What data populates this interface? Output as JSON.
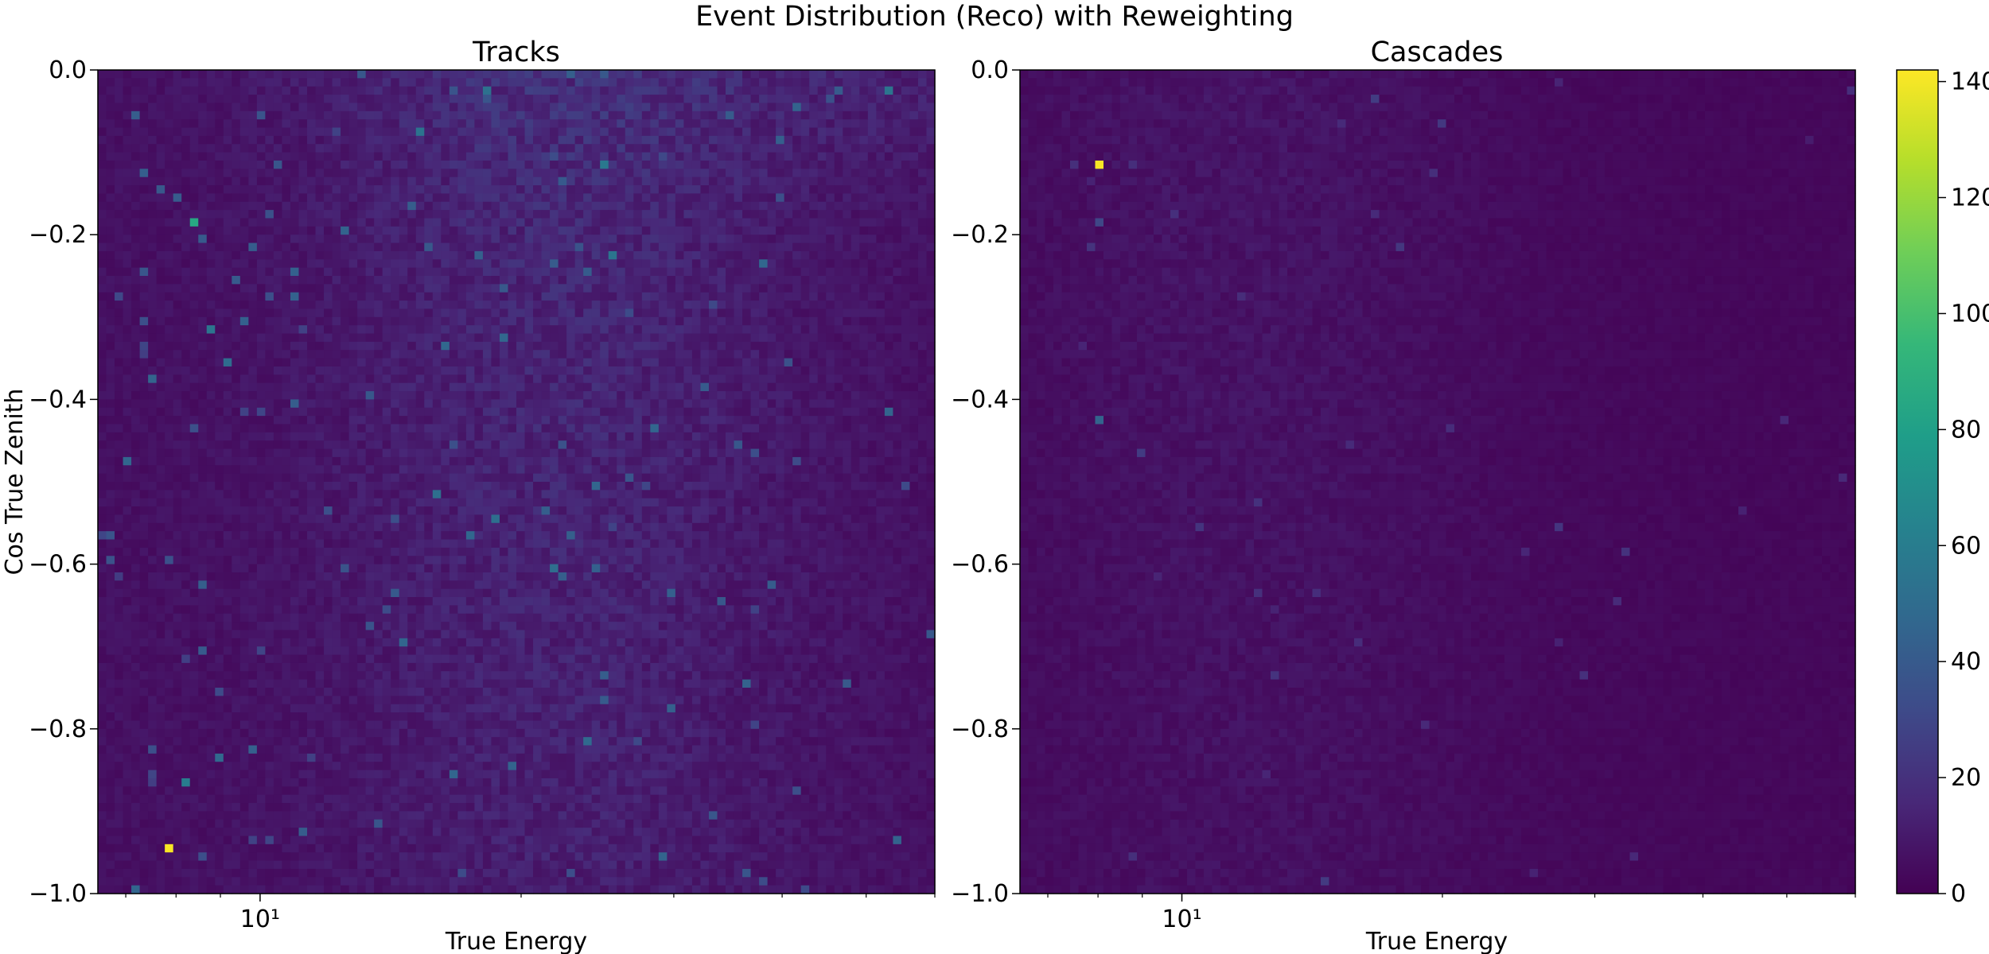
{
  "figure": {
    "title": "Event Distribution (Reco) with Reweighting"
  },
  "chart_data": [
    {
      "type": "heatmap",
      "title": "Tracks",
      "xlabel": "True Energy",
      "ylabel": "Cos True Zenith",
      "xscale": "log",
      "xlim": [
        6.5,
        60
      ],
      "ylim": [
        -1.0,
        0.0
      ],
      "x_ticks": [
        {
          "value": 10,
          "label": "10¹"
        }
      ],
      "y_ticks": [
        {
          "value": 0.0,
          "label": "0.0"
        },
        {
          "value": -0.2,
          "label": "−0.2"
        },
        {
          "value": -0.4,
          "label": "−0.4"
        },
        {
          "value": -0.6,
          "label": "−0.6"
        },
        {
          "value": -0.8,
          "label": "−0.8"
        },
        {
          "value": -1.0,
          "label": "−1.0"
        }
      ],
      "bins": {
        "x": 100,
        "y": 100
      },
      "colormap": "viridis",
      "background_level": 6,
      "hotspots": [
        {
          "x": 7.9,
          "y": -0.945,
          "value": 141
        },
        {
          "x": 8.35,
          "y": -0.185,
          "value": 85
        },
        {
          "x": 8.2,
          "y": -0.865,
          "value": 60
        },
        {
          "x": 8.7,
          "y": -0.315,
          "value": 55
        },
        {
          "x": 9.1,
          "y": -0.355,
          "value": 50
        },
        {
          "x": 7.5,
          "y": -0.375,
          "value": 45
        },
        {
          "x": 8.9,
          "y": -0.835,
          "value": 48
        },
        {
          "x": 8.5,
          "y": -0.625,
          "value": 42
        },
        {
          "x": 7.3,
          "y": -0.245,
          "value": 38
        },
        {
          "x": 8.6,
          "y": -0.2,
          "value": 40
        }
      ]
    },
    {
      "type": "heatmap",
      "title": "Cascades",
      "xlabel": "True Energy",
      "ylabel": "",
      "xscale": "log",
      "xlim": [
        6.5,
        60
      ],
      "ylim": [
        -1.0,
        0.0
      ],
      "x_ticks": [
        {
          "value": 10,
          "label": "10¹"
        }
      ],
      "y_ticks": [
        {
          "value": 0.0,
          "label": "0.0"
        },
        {
          "value": -0.2,
          "label": "−0.2"
        },
        {
          "value": -0.4,
          "label": "−0.4"
        },
        {
          "value": -0.6,
          "label": "−0.6"
        },
        {
          "value": -0.8,
          "label": "−0.8"
        },
        {
          "value": -1.0,
          "label": "−1.0"
        }
      ],
      "bins": {
        "x": 100,
        "y": 100
      },
      "colormap": "viridis",
      "background_level": 3,
      "hotspots": [
        {
          "x": 8.05,
          "y": -0.115,
          "value": 141
        },
        {
          "x": 7.95,
          "y": -0.425,
          "value": 45
        },
        {
          "x": 8.1,
          "y": -0.185,
          "value": 30
        }
      ]
    }
  ],
  "colorbar": {
    "min": 0,
    "max": 142,
    "colormap": "viridis",
    "ticks": [
      0,
      20,
      40,
      60,
      80,
      100,
      120,
      140
    ],
    "tick_labels": [
      "0",
      "20",
      "40",
      "60",
      "80",
      "100",
      "120",
      "140"
    ]
  }
}
